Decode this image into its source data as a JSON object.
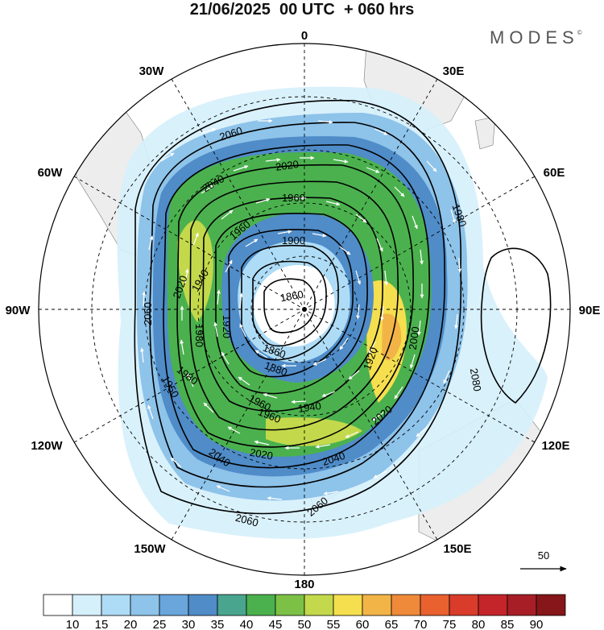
{
  "header": {
    "title": "21/06/2025  00 UTC  + 060 hrs",
    "brand": "MODES",
    "brand_mark": "©"
  },
  "map": {
    "projection": "polar stereographic, South Pole centred",
    "longitude_labels": {
      "top": "0",
      "top_right": "30E",
      "right_upper": "60E",
      "right": "90E",
      "right_lower": "120E",
      "bottom_right": "150E",
      "bottom": "180",
      "bottom_left": "150W",
      "left_lower": "120W",
      "left": "90W",
      "left_upper": "60W",
      "top_left": "30W"
    },
    "contour_labels": [
      "2060",
      "2040",
      "2020",
      "1960",
      "1960",
      "1900",
      "1940",
      "1860",
      "1980",
      "1920",
      "1860",
      "1880",
      "1940",
      "1960",
      "1980",
      "1920",
      "2000",
      "2020",
      "1960",
      "2060",
      "2040",
      "2020",
      "2040",
      "2060",
      "2060",
      "2080",
      "2020",
      "1980",
      "1950"
    ],
    "colors": {
      "land": "#eeeeee",
      "grid": "#000000",
      "contour": "#000000",
      "vector": "#ffffff"
    }
  },
  "vector_key": {
    "label": "50"
  },
  "colorbar": {
    "labels": [
      "10",
      "15",
      "20",
      "25",
      "30",
      "35",
      "40",
      "45",
      "50",
      "55",
      "60",
      "65",
      "70",
      "75",
      "80",
      "85",
      "90"
    ],
    "colors": [
      "#ffffff",
      "#d5effb",
      "#aedcf6",
      "#8ec3ea",
      "#6aa5db",
      "#4f8cc8",
      "#4aa58f",
      "#4bb14e",
      "#7cc146",
      "#c3d94b",
      "#f5df4e",
      "#f3b447",
      "#ee8a3a",
      "#e8612e",
      "#d93c2a",
      "#c4252a",
      "#a81e26",
      "#861619"
    ]
  }
}
